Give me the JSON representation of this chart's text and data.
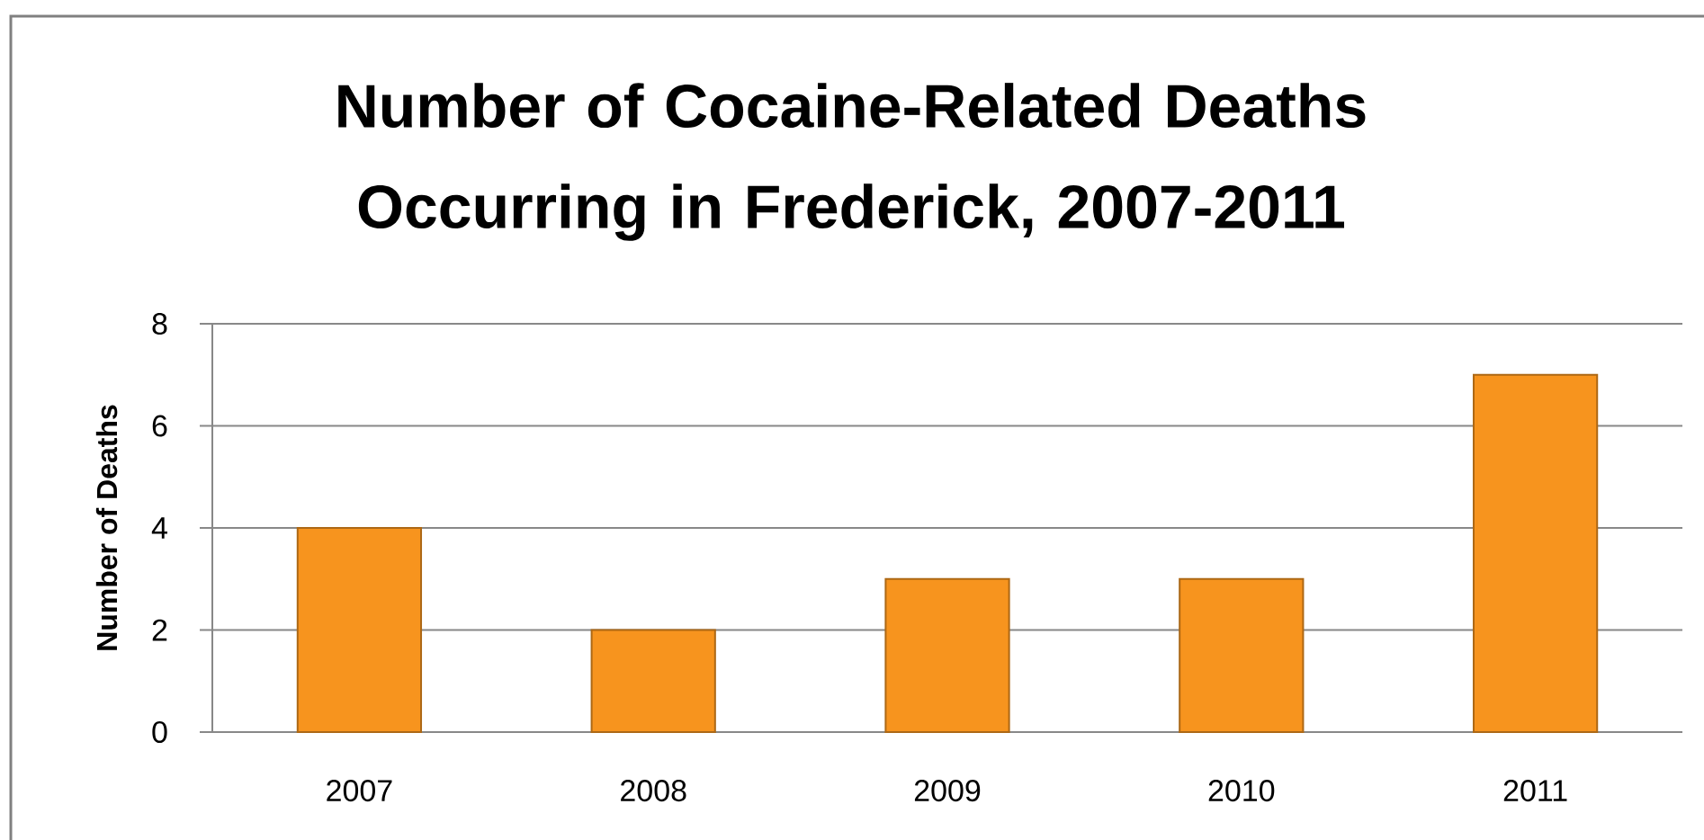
{
  "chart_data": {
    "type": "bar",
    "title": "Number of Cocaine-Related Deaths Occurring in Frederick, 2007-2011",
    "ylabel": "Number of Deaths",
    "categories": [
      "2007",
      "2008",
      "2009",
      "2010",
      "2011"
    ],
    "values": [
      4,
      2,
      3,
      3,
      7
    ],
    "color": "#f7941e",
    "ylim": [
      0,
      8
    ],
    "yticks": [
      0,
      2,
      4,
      6,
      8
    ],
    "grid": "y"
  }
}
